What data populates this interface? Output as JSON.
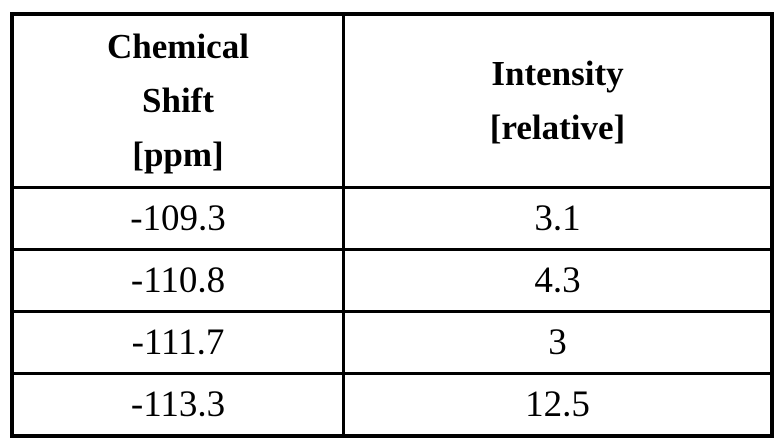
{
  "table": {
    "headers": {
      "shift": "Chemical\nShift\n[ppm]",
      "intensity": "Intensity\n[relative]"
    },
    "rows": [
      {
        "shift": "-109.3",
        "intensity": "3.1"
      },
      {
        "shift": "-110.8",
        "intensity": "4.3"
      },
      {
        "shift": "-111.7",
        "intensity": "3"
      },
      {
        "shift": "-113.3",
        "intensity": "12.5"
      }
    ],
    "colors": {
      "border": "#000000",
      "background": "#ffffff",
      "text": "#000000"
    }
  }
}
